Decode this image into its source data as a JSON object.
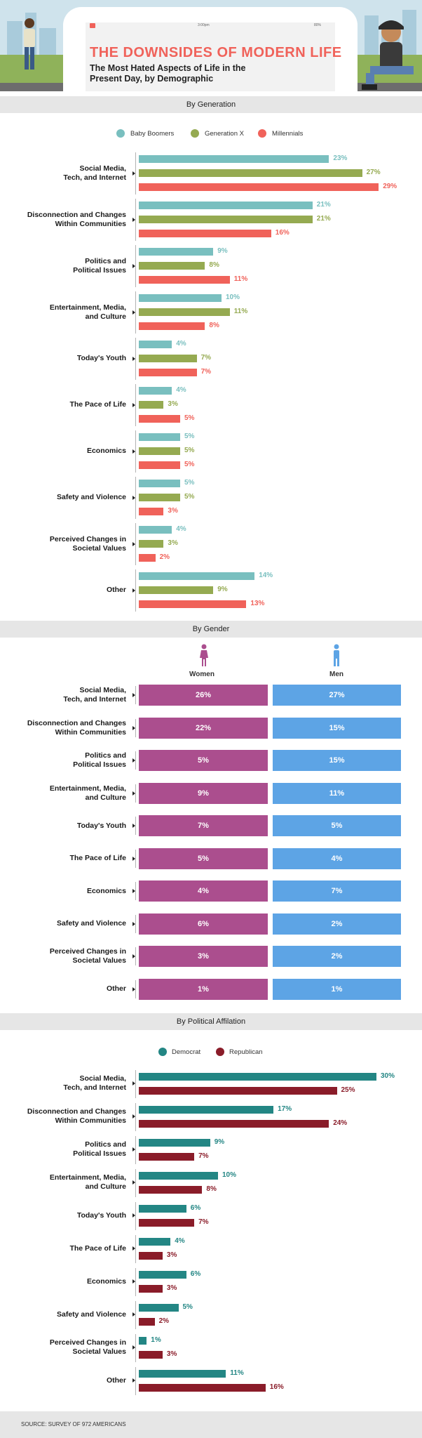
{
  "header": {
    "title": "THE DOWNSIDES OF MODERN LIFE",
    "subtitle": "The Most Hated Aspects of Life in the Present Day, by Demographic",
    "phone_time": "3:00pm",
    "phone_battery": "80%"
  },
  "colors": {
    "baby_boomers": "#79bfbf",
    "generation_x": "#95aa51",
    "millennials": "#f0625a",
    "women": "#ab4e8e",
    "men": "#5da4e5",
    "democrat": "#238684",
    "republican": "#8a1c29"
  },
  "categories": [
    [
      "Social Media,",
      "Tech, and Internet"
    ],
    [
      "Disconnection and Changes",
      "Within Communities"
    ],
    [
      "Politics and",
      "Political Issues"
    ],
    [
      "Entertainment, Media,",
      "and Culture"
    ],
    [
      "Today's Youth"
    ],
    [
      "The Pace of Life"
    ],
    [
      "Economics"
    ],
    [
      "Safety and Violence"
    ],
    [
      "Perceived Changes in",
      "Societal Values"
    ],
    [
      "Other"
    ]
  ],
  "chart_data": [
    {
      "type": "bar",
      "title": "By Generation",
      "categories": [
        "Social Media, Tech, and Internet",
        "Disconnection and Changes Within Communities",
        "Politics and Political Issues",
        "Entertainment, Media, and Culture",
        "Today's Youth",
        "The Pace of Life",
        "Economics",
        "Safety and Violence",
        "Perceived Changes in Societal Values",
        "Other"
      ],
      "series": [
        {
          "name": "Baby Boomers",
          "values": [
            23,
            21,
            9,
            10,
            4,
            4,
            5,
            5,
            4,
            14
          ]
        },
        {
          "name": "Generation X",
          "values": [
            27,
            21,
            8,
            11,
            7,
            3,
            5,
            5,
            3,
            9
          ]
        },
        {
          "name": "Millennials",
          "values": [
            29,
            16,
            11,
            8,
            7,
            5,
            5,
            3,
            2,
            13
          ]
        }
      ],
      "value_suffix": "%",
      "legend_placement": "top"
    },
    {
      "type": "table",
      "title": "By Gender",
      "categories": [
        "Social Media, Tech, and Internet",
        "Disconnection and Changes Within Communities",
        "Politics and Political Issues",
        "Entertainment, Media, and Culture",
        "Today's Youth",
        "The Pace of Life",
        "Economics",
        "Safety and Violence",
        "Perceived Changes in Societal Values",
        "Other"
      ],
      "series": [
        {
          "name": "Women",
          "values": [
            26,
            22,
            5,
            9,
            7,
            5,
            4,
            6,
            3,
            1
          ]
        },
        {
          "name": "Men",
          "values": [
            27,
            15,
            15,
            11,
            5,
            4,
            7,
            2,
            2,
            1
          ]
        }
      ],
      "value_suffix": "%"
    },
    {
      "type": "bar",
      "title": "By Political Affilation",
      "categories": [
        "Social Media, Tech, and Internet",
        "Disconnection and Changes Within Communities",
        "Politics and Political Issues",
        "Entertainment, Media, and Culture",
        "Today's Youth",
        "The Pace of Life",
        "Economics",
        "Safety and Violence",
        "Perceived Changes in Societal Values",
        "Other"
      ],
      "series": [
        {
          "name": "Democrat",
          "values": [
            30,
            17,
            9,
            10,
            6,
            4,
            6,
            5,
            1,
            11
          ]
        },
        {
          "name": "Republican",
          "values": [
            25,
            24,
            7,
            8,
            7,
            3,
            3,
            2,
            3,
            16
          ]
        }
      ],
      "value_suffix": "%",
      "legend_placement": "top"
    }
  ],
  "footer": {
    "source": "SOURCE: SURVEY OF 972 AMERICANS"
  }
}
